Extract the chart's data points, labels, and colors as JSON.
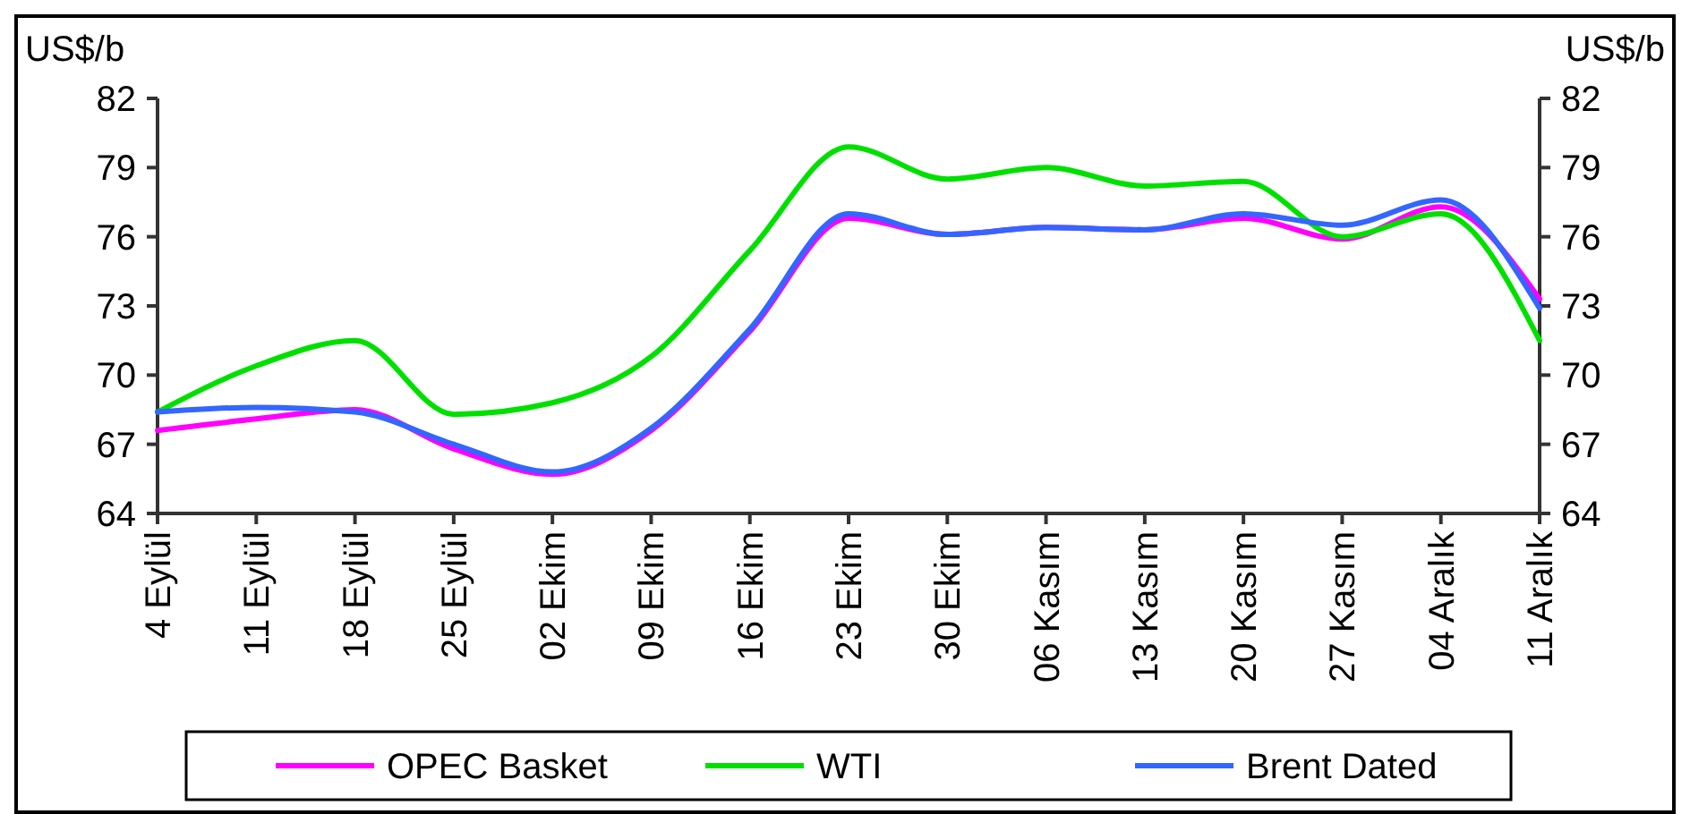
{
  "chart_data": {
    "type": "line",
    "ylabel": "US$/b",
    "y2label": "US$/b",
    "categories": [
      "4 Eylül",
      "11 Eylül",
      "18 Eylül",
      "25 Eylül",
      "02 Ekim",
      "09 Ekim",
      "16 Ekim",
      "23 Ekim",
      "30 Ekim",
      "06 Kasım",
      "13 Kasım",
      "20 Kasım",
      "27 Kasım",
      "04 Aralık",
      "11 Aralık"
    ],
    "series": [
      {
        "name": "OPEC Basket",
        "color": "#ff00ff",
        "values": [
          67.6,
          68.1,
          68.5,
          66.8,
          65.7,
          67.6,
          71.9,
          76.8,
          76.1,
          76.4,
          76.3,
          76.8,
          75.9,
          77.3,
          73.3
        ]
      },
      {
        "name": "WTI",
        "color": "#00e000",
        "values": [
          68.4,
          70.4,
          71.5,
          68.3,
          68.8,
          70.8,
          75.4,
          79.9,
          78.5,
          79.0,
          78.2,
          78.4,
          76.0,
          77.0,
          71.5
        ]
      },
      {
        "name": "Brent Dated",
        "color": "#3366ff",
        "values": [
          68.4,
          68.6,
          68.4,
          67.0,
          65.8,
          67.7,
          72.0,
          77.0,
          76.1,
          76.4,
          76.3,
          77.0,
          76.5,
          77.6,
          72.9
        ]
      }
    ],
    "ylim": [
      64,
      82
    ],
    "yticks": [
      64,
      67,
      70,
      73,
      76,
      79,
      82
    ],
    "y2lim": [
      64,
      82
    ],
    "y2ticks": [
      64,
      67,
      70,
      73,
      76,
      79,
      82
    ],
    "grid": false,
    "legend": "bottom",
    "marker": "none",
    "line_style": "solid"
  }
}
